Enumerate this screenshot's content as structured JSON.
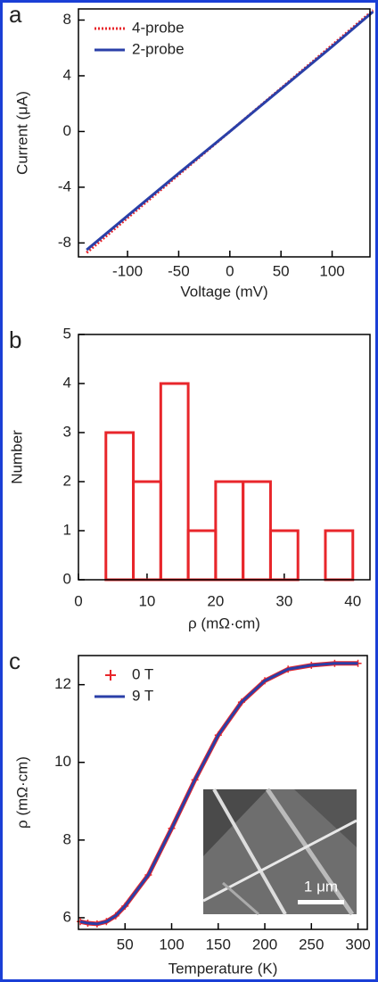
{
  "chart_data": [
    {
      "type": "line",
      "label": "a",
      "xlabel": "Voltage (mV)",
      "ylabel": "Current (μA)",
      "x": [
        -140,
        -100,
        -50,
        0,
        50,
        100,
        140
      ],
      "series": [
        {
          "name": "4-probe",
          "color": "#e8262b",
          "style": "dotted",
          "values": [
            -8.7,
            -6.2,
            -3.1,
            0,
            3.1,
            6.2,
            8.7
          ]
        },
        {
          "name": "2-probe",
          "color": "#2a3fa8",
          "style": "solid",
          "values": [
            -8.5,
            -6.05,
            -3.0,
            0,
            3.05,
            6.1,
            8.6
          ]
        }
      ],
      "xlim": [
        -148,
        137
      ],
      "ylim": [
        -9,
        8.8
      ],
      "xticks": [
        -100,
        -50,
        0,
        50,
        100
      ],
      "yticks": [
        -8,
        -4,
        0,
        4,
        8
      ],
      "legend": "top-left"
    },
    {
      "type": "histogram",
      "label": "b",
      "xlabel": "ρ (mΩ·cm)",
      "ylabel": "Number",
      "color": "#e8262b",
      "bins": [
        4,
        8,
        12,
        16,
        20,
        24,
        28,
        32,
        36,
        40
      ],
      "values": [
        3,
        2,
        4,
        1,
        2,
        2,
        1,
        0,
        1
      ],
      "xlim": [
        0,
        42.5
      ],
      "ylim": [
        0,
        5
      ],
      "xticks": [
        0,
        10,
        20,
        30,
        40
      ],
      "yticks": [
        0,
        1,
        2,
        3,
        4,
        5
      ]
    },
    {
      "type": "line",
      "label": "c",
      "xlabel": "Temperature (K)",
      "ylabel": "ρ (mΩ·cm)",
      "x": [
        2,
        10,
        20,
        30,
        40,
        50,
        75,
        100,
        125,
        150,
        175,
        200,
        225,
        250,
        275,
        300
      ],
      "series": [
        {
          "name": "0 T",
          "color": "#e8262b",
          "style": "plus",
          "values": [
            5.9,
            5.86,
            5.84,
            5.9,
            6.05,
            6.3,
            7.1,
            8.3,
            9.55,
            10.7,
            11.55,
            12.1,
            12.4,
            12.5,
            12.55,
            12.55
          ]
        },
        {
          "name": "9 T",
          "color": "#2a3fa8",
          "style": "solid",
          "values": [
            5.9,
            5.86,
            5.84,
            5.9,
            6.05,
            6.3,
            7.1,
            8.3,
            9.55,
            10.7,
            11.55,
            12.1,
            12.4,
            12.5,
            12.55,
            12.55
          ]
        }
      ],
      "xlim": [
        0,
        310
      ],
      "ylim": [
        5.7,
        12.75
      ],
      "xticks": [
        50,
        100,
        150,
        200,
        250,
        300
      ],
      "yticks": [
        6,
        8,
        10,
        12
      ],
      "legend": "top-left",
      "inset_scale": "1 μm"
    }
  ]
}
